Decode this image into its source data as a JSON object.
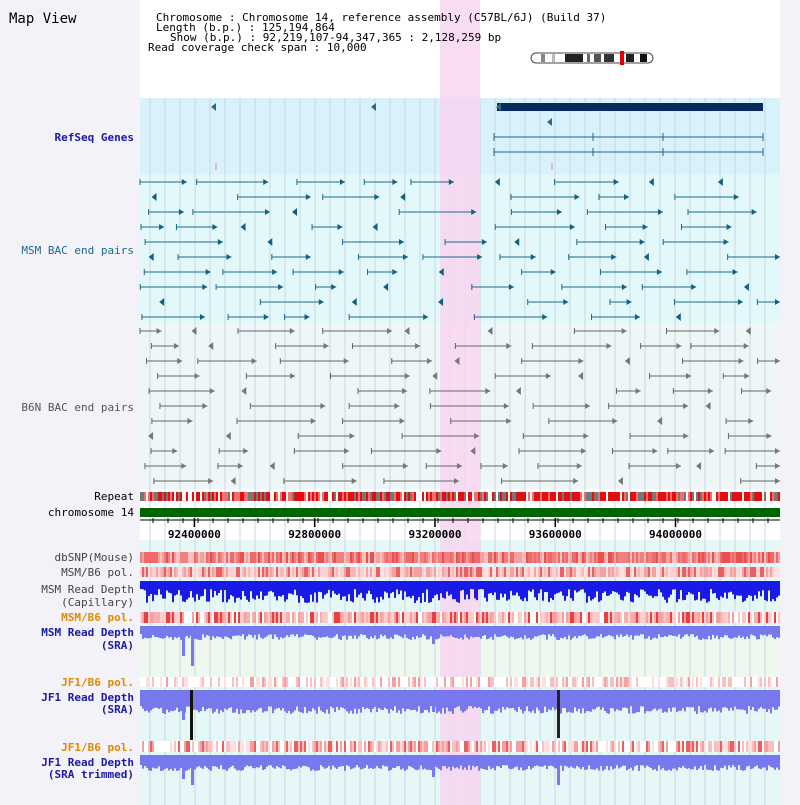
{
  "view_title": "Map View",
  "info": {
    "lines": [
      {
        "label": "Chromosome",
        "sep": " : ",
        "value": "Chromosome 14, reference assembly (C57BL/6J) (Build 37)"
      },
      {
        "label": "Length (b.p.)",
        "sep": " : ",
        "value": "125,194,864"
      },
      {
        "label": "Show (b.p.)",
        "sep": " : ",
        "value": "92,219,107-94,347,365 : 2,128,259 bp"
      },
      {
        "label": "Read coverage check span",
        "sep": " : ",
        "value": "10,000"
      }
    ]
  },
  "tracks": {
    "refseq": "RefSeq Genes",
    "msm_bac": "MSM BAC end pairs",
    "b6n_bac": "B6N BAC end pairs",
    "repeat": "Repeat",
    "chromosome": "chromosome 14",
    "dbsnp": "dbSNP(Mouse)",
    "msm_b6_pol": "MSM/B6 pol.",
    "msm_read_depth_cap_1": "MSM Read Depth",
    "msm_read_depth_cap_2": "(Capillary)",
    "msm_b6_pol_2": "MSM/B6 pol.",
    "msm_read_depth_sra_1": "MSM Read Depth",
    "msm_read_depth_sra_2": "(SRA)",
    "jf1_b6_pol": "JF1/B6 pol.",
    "jf1_read_depth_sra_1": "JF1 Read Depth",
    "jf1_read_depth_sra_2": "(SRA)",
    "jf1_b6_pol_2": "JF1/B6 pol.",
    "jf1_read_depth_trim_1": "JF1 Read Depth",
    "jf1_read_depth_trim_2": "(SRA trimmed)"
  },
  "ruler": {
    "ticks": [
      {
        "label": "92400000",
        "bp": 92400000
      },
      {
        "label": "92800000",
        "bp": 92800000
      },
      {
        "label": "93200000",
        "bp": 93200000
      },
      {
        "label": "93600000",
        "bp": 93600000
      },
      {
        "label": "94000000",
        "bp": 94000000
      }
    ]
  },
  "colors": {
    "refseq_label": "#1a1aa6",
    "msm_bac_label": "#1a6a8a",
    "b6n_bac_label": "#555555",
    "orange_label": "#e08a00",
    "blue_label": "#1a1aa6",
    "highlight": "#f7d6f0",
    "refseq_band": "#d9f1fb",
    "chromosome_bar": "#006400",
    "read_depth_blue": "#1a1ae6",
    "read_depth_light": "#7777ee"
  }
}
